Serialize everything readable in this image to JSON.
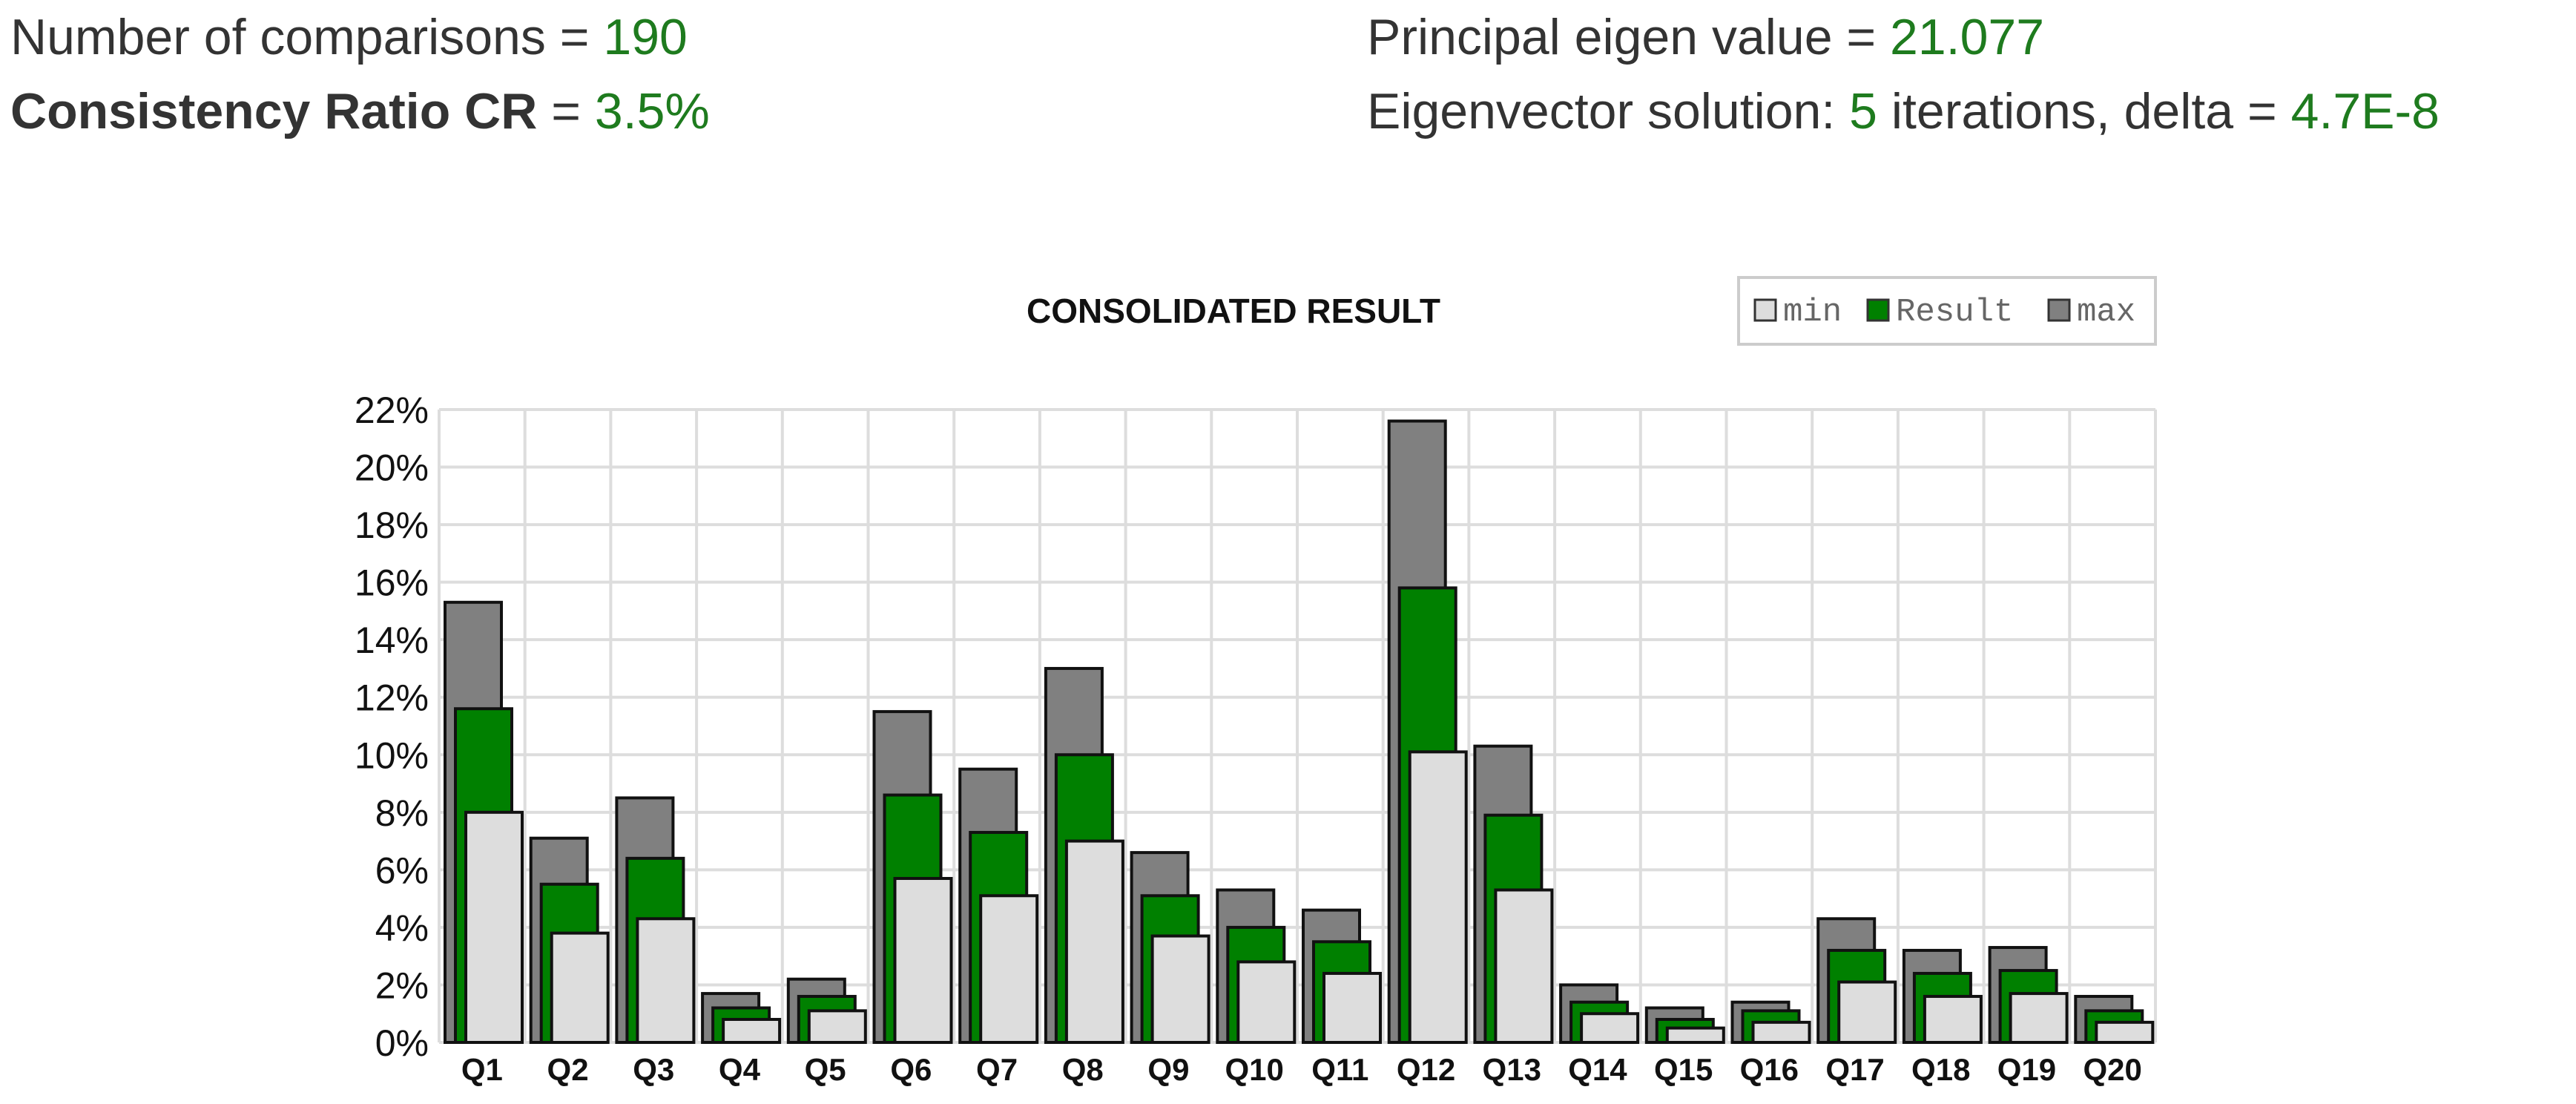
{
  "stats": {
    "comparisons_label": "Number of comparisons",
    "comparisons_value": "190",
    "cr_label": "Consistency Ratio CR",
    "cr_value": "3.5%",
    "eigen_label": "Principal eigen value",
    "eigen_value": "21.077",
    "eigvec_label": "Eigenvector solution:",
    "eigvec_iterations": "5",
    "eigvec_iter_text": "iterations, delta",
    "eigvec_delta": "4.7E-8",
    "equals": "="
  },
  "colors": {
    "min": "#dddddd",
    "result": "#008000",
    "max": "#808080",
    "value_text": "#1e7b1e",
    "grid": "#dddddd"
  },
  "chart_data": {
    "type": "bar",
    "title": "CONSOLIDATED RESULT",
    "categories": [
      "Q1",
      "Q2",
      "Q3",
      "Q4",
      "Q5",
      "Q6",
      "Q7",
      "Q8",
      "Q9",
      "Q10",
      "Q11",
      "Q12",
      "Q13",
      "Q14",
      "Q15",
      "Q16",
      "Q17",
      "Q18",
      "Q19",
      "Q20"
    ],
    "series": [
      {
        "name": "min",
        "values": [
          8.0,
          3.8,
          4.3,
          0.8,
          1.1,
          5.7,
          5.1,
          7.0,
          3.7,
          2.8,
          2.4,
          10.1,
          5.3,
          1.0,
          0.5,
          0.7,
          2.1,
          1.6,
          1.7,
          0.7
        ]
      },
      {
        "name": "Result",
        "values": [
          11.6,
          5.5,
          6.4,
          1.2,
          1.6,
          8.6,
          7.3,
          10.0,
          5.1,
          4.0,
          3.5,
          15.8,
          7.9,
          1.4,
          0.8,
          1.1,
          3.2,
          2.4,
          2.5,
          1.1
        ]
      },
      {
        "name": "max",
        "values": [
          15.3,
          7.1,
          8.5,
          1.7,
          2.2,
          11.5,
          9.5,
          13.0,
          6.6,
          5.3,
          4.6,
          21.6,
          10.3,
          2.0,
          1.2,
          1.4,
          4.3,
          3.2,
          3.3,
          1.6
        ]
      }
    ],
    "ylim": [
      0,
      22
    ],
    "yticks": [
      "0%",
      "2%",
      "4%",
      "6%",
      "8%",
      "10%",
      "12%",
      "14%",
      "16%",
      "18%",
      "20%",
      "22%"
    ],
    "legend": [
      "min",
      "Result",
      "max"
    ],
    "legend_position": "top-right",
    "grid": true
  }
}
